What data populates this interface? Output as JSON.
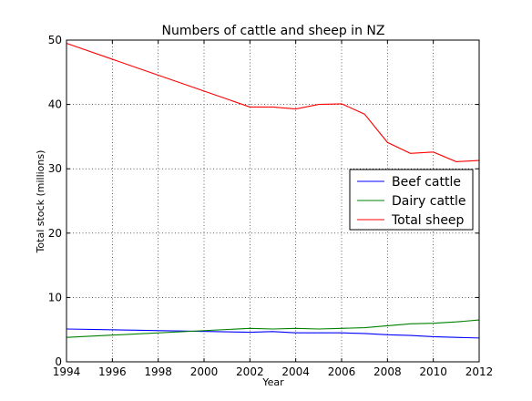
{
  "chart_data": {
    "type": "line",
    "title": "Numbers of cattle and sheep in NZ",
    "xlabel": "Year",
    "ylabel": "Total stock (millions)",
    "xlim": [
      1994,
      2012
    ],
    "ylim": [
      0,
      50
    ],
    "xticks": [
      1994,
      1996,
      1998,
      2000,
      2002,
      2004,
      2006,
      2008,
      2010,
      2012
    ],
    "yticks": [
      0,
      10,
      20,
      30,
      40,
      50
    ],
    "grid": true,
    "legend_position": "right",
    "series": [
      {
        "name": "Beef cattle",
        "color": "#0000ff",
        "x": [
          1994,
          2002,
          2003,
          2004,
          2005,
          2006,
          2007,
          2008,
          2009,
          2010,
          2011,
          2012
        ],
        "values": [
          5.1,
          4.6,
          4.7,
          4.5,
          4.5,
          4.5,
          4.4,
          4.2,
          4.1,
          3.9,
          3.8,
          3.7
        ]
      },
      {
        "name": "Dairy cattle",
        "color": "#008000",
        "x": [
          1994,
          2002,
          2003,
          2004,
          2005,
          2006,
          2007,
          2008,
          2009,
          2010,
          2011,
          2012
        ],
        "values": [
          3.8,
          5.2,
          5.1,
          5.2,
          5.1,
          5.2,
          5.3,
          5.6,
          5.9,
          6.0,
          6.2,
          6.5
        ]
      },
      {
        "name": "Total sheep",
        "color": "#ff0000",
        "x": [
          1994,
          2002,
          2003,
          2004,
          2005,
          2006,
          2007,
          2008,
          2009,
          2010,
          2011,
          2012
        ],
        "values": [
          49.5,
          39.6,
          39.6,
          39.3,
          40.0,
          40.1,
          38.5,
          34.1,
          32.4,
          32.6,
          31.1,
          31.3
        ]
      }
    ]
  }
}
